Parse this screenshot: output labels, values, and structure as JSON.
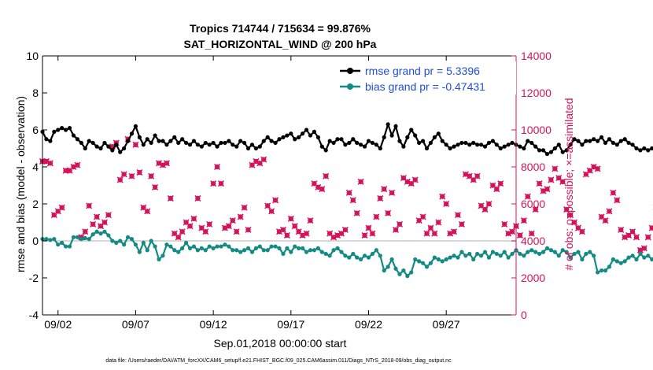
{
  "colors": {
    "rmse": "#000000",
    "bias": "#138a84",
    "obs": "#d4145a",
    "zero": "#cccccc",
    "legend_text": "#1f4fd8"
  },
  "chart_data": {
    "type": "line",
    "title_line1": "Tropics 714744 / 715634 = 99.876%",
    "title_line2": "SAT_HORIZONTAL_WIND @ 200 hPa",
    "xlabel": "Sep.01,2018 00:00:00 start",
    "ylabel": "rmse and bias (model - observation)",
    "y2label": "# of obs: o=possible; ×=assimilated",
    "footnote": "data file: /Users/raeder/DAI/ATM_forcXX/CAM6_setup/f.e21.FHIST_BGC.f09_025.CAM6assim.011/Diags_NTrS_2018-09/obs_diag_output.nc",
    "xlim": [
      0,
      30.5
    ],
    "ylim": [
      -4,
      10
    ],
    "y2lim": [
      0,
      14000
    ],
    "x_ticks": [
      1,
      6,
      11,
      16,
      21,
      26
    ],
    "x_tick_labels": [
      "09/02",
      "09/07",
      "09/12",
      "09/17",
      "09/22",
      "09/27"
    ],
    "y_ticks": [
      -4,
      -2,
      0,
      2,
      4,
      6,
      8,
      10
    ],
    "y_tick_labels": [
      "-4",
      "-2",
      "0",
      "2",
      "4",
      "6",
      "8",
      "10"
    ],
    "y2_ticks": [
      0,
      2000,
      4000,
      6000,
      8000,
      10000,
      12000,
      14000
    ],
    "y2_tick_labels": [
      "0",
      "2000",
      "4000",
      "6000",
      "8000",
      "10000",
      "12000",
      "14000"
    ],
    "x_step": 0.25,
    "series": [
      {
        "name": "rmse grand pr = 5.3396",
        "axis": "left",
        "values": [
          5.9,
          5.5,
          5.4,
          5.9,
          6.0,
          6.1,
          6.0,
          6.1,
          5.7,
          5.5,
          5.3,
          5.0,
          5.4,
          5.3,
          5.1,
          5.0,
          5.3,
          5.1,
          4.9,
          5.2,
          4.8,
          5.0,
          5.4,
          5.8,
          6.2,
          5.6,
          5.2,
          5.5,
          5.3,
          5.7,
          5.4,
          5.4,
          5.2,
          5.4,
          5.6,
          5.3,
          5.5,
          5.3,
          5.2,
          5.4,
          5.2,
          5.1,
          5.3,
          5.2,
          5.3,
          5.1,
          5.3,
          5.3,
          5.4,
          5.2,
          5.1,
          5.4,
          5.3,
          5.0,
          5.2,
          5.0,
          5.1,
          5.4,
          5.6,
          5.4,
          5.3,
          5.5,
          5.6,
          5.7,
          5.8,
          5.5,
          5.6,
          5.8,
          6.0,
          5.7,
          5.9,
          5.6,
          5.1,
          4.9,
          5.4,
          5.3,
          5.5,
          5.5,
          5.2,
          5.3,
          5.5,
          5.3,
          5.2,
          5.1,
          5.4,
          5.3,
          5.2,
          5.0,
          5.6,
          6.3,
          5.7,
          6.2,
          5.4,
          5.1,
          5.6,
          6.0,
          5.7,
          5.3,
          5.4,
          5.0,
          5.3,
          5.6,
          5.8,
          5.4,
          5.2,
          5.0,
          5.1,
          5.2,
          5.3,
          5.3,
          5.2,
          5.3,
          5.2,
          5.2,
          5.1,
          5.3,
          5.4,
          5.2,
          5.0,
          5.1,
          5.2,
          5.3,
          5.2,
          5.1,
          5.0,
          5.4,
          5.3,
          5.1,
          4.9,
          4.9,
          4.7,
          4.8,
          5.0,
          5.2,
          4.8,
          4.9,
          5.2,
          5.5,
          5.4,
          5.2,
          5.4,
          5.4,
          5.5,
          5.4,
          5.6,
          5.3,
          5.5,
          5.3,
          5.2,
          5.4,
          5.5,
          5.3,
          5.2,
          5.0,
          4.9,
          5.0,
          4.9,
          5.0,
          5.0,
          4.8,
          5.0,
          4.8
        ]
      },
      {
        "name": "bias grand pr = -0.47431",
        "axis": "left",
        "values": [
          0.1,
          0.1,
          0.05,
          0.1,
          -0.2,
          -0.1,
          -0.3,
          -0.3,
          0.2,
          0.2,
          0.1,
          0.15,
          0.1,
          0.35,
          0.5,
          0.4,
          0.5,
          0.3,
          0.0,
          -0.1,
          0.0,
          -0.2,
          0.2,
          0.1,
          -0.2,
          -0.6,
          -0.1,
          -0.5,
          0.0,
          -0.3,
          -1.0,
          -0.8,
          -0.2,
          -0.3,
          -0.5,
          -0.6,
          -0.4,
          -0.1,
          -0.4,
          -0.3,
          -0.5,
          -0.4,
          -0.5,
          -0.3,
          -0.4,
          -0.3,
          -0.3,
          -0.2,
          -0.3,
          -0.5,
          -0.5,
          -0.6,
          -0.5,
          -0.4,
          -0.6,
          -0.4,
          -0.3,
          -0.5,
          -0.5,
          -0.3,
          -0.3,
          -0.4,
          -0.7,
          -0.4,
          -0.6,
          -0.3,
          -0.4,
          -0.4,
          -0.6,
          -0.5,
          -0.5,
          -0.4,
          -0.6,
          -0.7,
          -0.8,
          -0.5,
          -0.4,
          -0.6,
          -0.8,
          -0.9,
          -0.7,
          -0.9,
          -1.0,
          -0.8,
          -0.9,
          -0.7,
          -0.5,
          -0.8,
          -1.6,
          -1.4,
          -1.0,
          -1.5,
          -1.8,
          -1.6,
          -1.9,
          -1.7,
          -1.0,
          -1.1,
          -1.2,
          -1.4,
          -1.2,
          -0.9,
          -1.0,
          -1.1,
          -1.0,
          -0.9,
          -0.8,
          -0.9,
          -0.6,
          -0.8,
          -0.7,
          -1.0,
          -0.7,
          -0.8,
          -0.6,
          -0.9,
          -0.6,
          -0.7,
          -0.8,
          -0.6,
          -0.9,
          -0.7,
          -0.5,
          -0.7,
          -0.8,
          -0.6,
          -0.5,
          -0.6,
          -0.7,
          -0.6,
          -0.4,
          -0.5,
          -0.6,
          -0.8,
          -0.5,
          -0.6,
          -0.9,
          -0.7,
          -0.6,
          -1.0,
          -0.7,
          -0.6,
          -0.8,
          -1.7,
          -1.6,
          -1.6,
          -1.4,
          -1.0,
          -1.1,
          -1.2,
          -1.1,
          -0.9,
          -0.8,
          -1.0,
          -0.7,
          -0.9,
          -0.8,
          -1.0,
          -1.1,
          -1.1,
          -0.8,
          -0.7,
          -0.7,
          -0.6,
          -0.8,
          -0.2
        ]
      },
      {
        "name": "obs possible/assimilated",
        "axis": "right",
        "values": [
          8300,
          8300,
          8200,
          5400,
          5600,
          5800,
          7800,
          7800,
          8000,
          8100,
          4200,
          4500,
          5900,
          4900,
          5300,
          4800,
          5000,
          5400,
          9100,
          9300,
          7300,
          7600,
          9500,
          7500,
          9200,
          7700,
          5800,
          5600,
          7500,
          6900,
          8200,
          8100,
          8200,
          6300,
          4400,
          4200,
          4500,
          5000,
          4800,
          5200,
          6300,
          4700,
          4500,
          4900,
          7100,
          8000,
          7100,
          4700,
          4800,
          5100,
          4500,
          5300,
          5800,
          4600,
          8100,
          8300,
          8200,
          8400,
          5900,
          5600,
          6200,
          4500,
          4600,
          4300,
          5200,
          4800,
          4500,
          4300,
          4400,
          5100,
          7100,
          6900,
          6800,
          7500,
          4400,
          4200,
          4300,
          4400,
          4600,
          6600,
          6200,
          5500,
          7200,
          4300,
          4700,
          4400,
          5300,
          6300,
          6800,
          5500,
          6600,
          4600,
          4900,
          7400,
          7200,
          7100,
          7300,
          5100,
          5300,
          4400,
          4700,
          4400,
          5000,
          6400,
          6000,
          4400,
          4500,
          5400,
          4900,
          7600,
          7500,
          7300,
          7500,
          5900,
          5700,
          6000,
          7000,
          6800,
          7100,
          4900,
          4400,
          4500,
          4800,
          4300,
          5100,
          6400,
          4400,
          5700,
          7100,
          6700,
          6800,
          7300,
          7900,
          7400,
          7200,
          5700,
          5400,
          5000,
          4700,
          4500,
          7600,
          7800,
          8000,
          7900,
          5300,
          5100,
          5600,
          6600,
          6200,
          4600,
          4200,
          4300,
          4500,
          4200,
          3500,
          3600,
          4200,
          4700,
          5800,
          5900,
          6400,
          5900,
          5000,
          6500,
          7000,
          5900,
          6100,
          4300,
          4400,
          4100,
          4200,
          4100,
          4100,
          4000,
          0
        ]
      }
    ]
  }
}
